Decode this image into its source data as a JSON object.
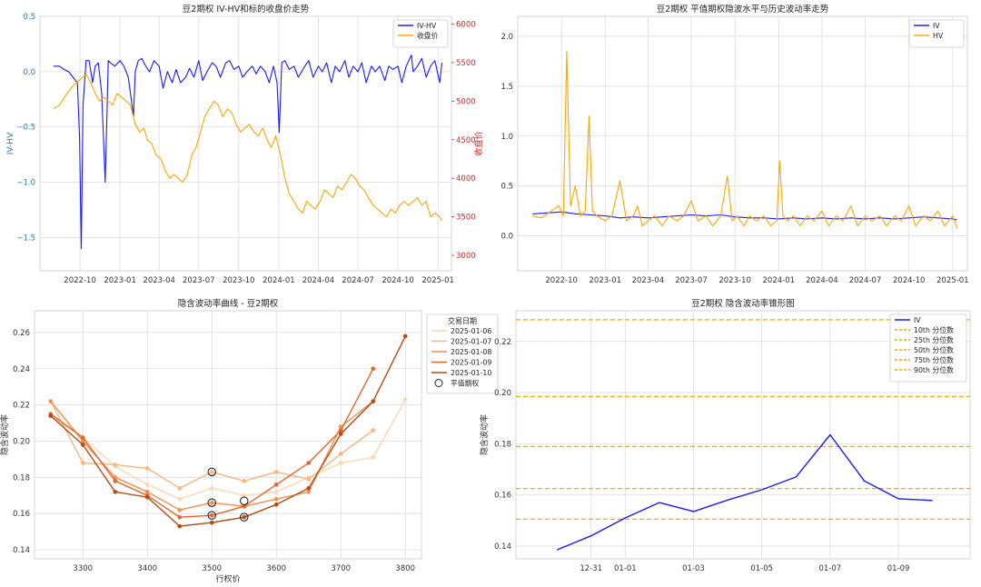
{
  "chart_data": [
    {
      "type": "line",
      "title": "豆2期权 IV-HV和标的收盘价走势",
      "ylabel": "IV-HV",
      "ylabel_right": "收盘价",
      "left_axis_color": "#1f77b4",
      "right_axis_color": "#d62728",
      "ylim": [
        -1.8,
        0.5
      ],
      "ylim_right": [
        2800,
        6100
      ],
      "yticks": [
        0.5,
        0.0,
        -0.5,
        -1.0,
        -1.5
      ],
      "yticks_right": [
        6000,
        5500,
        5000,
        4500,
        4000,
        3500,
        3000
      ],
      "xlim": [
        "2022-07-01",
        "2025-02-01"
      ],
      "xticks": [
        "2022-10",
        "2023-01",
        "2023-04",
        "2023-07",
        "2023-10",
        "2024-01",
        "2024-04",
        "2024-07",
        "2024-10",
        "2025-01"
      ],
      "grid": true,
      "legend": "top-right",
      "series": [
        {
          "name": "IV-HV",
          "color": "#1a1aff",
          "axis": "left",
          "x": [
            "2022-08-01",
            "2022-08-15",
            "2022-08-25",
            "2022-09-05",
            "2022-09-15",
            "2022-09-25",
            "2022-09-30",
            "2022-10-04",
            "2022-10-08",
            "2022-10-15",
            "2022-10-22",
            "2022-10-30",
            "2022-11-05",
            "2022-11-12",
            "2022-11-20",
            "2022-11-28",
            "2022-12-02",
            "2022-12-05",
            "2022-12-10",
            "2022-12-20",
            "2023-01-01",
            "2023-01-10",
            "2023-01-20",
            "2023-02-01",
            "2023-02-05",
            "2023-02-12",
            "2023-02-20",
            "2023-03-01",
            "2023-03-10",
            "2023-03-20",
            "2023-04-01",
            "2023-04-10",
            "2023-04-20",
            "2023-05-01",
            "2023-05-10",
            "2023-05-20",
            "2023-06-01",
            "2023-06-10",
            "2023-06-20",
            "2023-07-01",
            "2023-07-10",
            "2023-07-20",
            "2023-08-01",
            "2023-08-10",
            "2023-08-20",
            "2023-09-01",
            "2023-09-10",
            "2023-09-20",
            "2023-10-01",
            "2023-10-10",
            "2023-10-20",
            "2023-11-01",
            "2023-11-10",
            "2023-11-20",
            "2023-12-01",
            "2023-12-10",
            "2023-12-20",
            "2023-12-28",
            "2024-01-02",
            "2024-01-08",
            "2024-01-15",
            "2024-01-25",
            "2024-02-05",
            "2024-02-15",
            "2024-03-01",
            "2024-03-10",
            "2024-03-20",
            "2024-04-01",
            "2024-04-10",
            "2024-04-20",
            "2024-05-01",
            "2024-05-10",
            "2024-05-20",
            "2024-06-01",
            "2024-06-10",
            "2024-06-20",
            "2024-07-01",
            "2024-07-10",
            "2024-07-20",
            "2024-08-01",
            "2024-08-10",
            "2024-08-20",
            "2024-09-01",
            "2024-09-10",
            "2024-09-20",
            "2024-10-01",
            "2024-10-10",
            "2024-10-20",
            "2024-11-01",
            "2024-11-05",
            "2024-11-15",
            "2024-11-25",
            "2024-12-05",
            "2024-12-15",
            "2024-12-25",
            "2025-01-05",
            "2025-01-10"
          ],
          "y": [
            0.05,
            0.05,
            0.02,
            0.0,
            -0.05,
            -0.1,
            -0.6,
            -1.6,
            -0.3,
            0.1,
            0.1,
            -0.1,
            0.05,
            0.08,
            -0.2,
            -1.0,
            -0.4,
            0.1,
            0.08,
            0.05,
            0.1,
            0.05,
            -0.05,
            -0.4,
            0.0,
            0.1,
            0.12,
            0.05,
            0.0,
            0.1,
            0.05,
            -0.15,
            0.0,
            -0.1,
            0.02,
            -0.1,
            -0.05,
            0.03,
            -0.05,
            0.1,
            -0.08,
            0.0,
            0.08,
            0.05,
            -0.05,
            0.08,
            0.1,
            0.02,
            0.05,
            -0.05,
            0.0,
            0.05,
            -0.02,
            0.05,
            0.0,
            -0.1,
            0.05,
            -0.1,
            -0.55,
            0.08,
            0.1,
            0.02,
            0.05,
            -0.05,
            0.05,
            0.1,
            -0.05,
            0.05,
            0.0,
            0.08,
            -0.1,
            0.05,
            0.0,
            0.1,
            -0.05,
            0.05,
            0.0,
            0.08,
            -0.1,
            0.05,
            0.0,
            0.05,
            -0.08,
            0.05,
            0.02,
            0.05,
            -0.1,
            0.05,
            0.15,
            0.0,
            0.05,
            0.12,
            -0.05,
            0.05,
            0.1,
            -0.1,
            0.08
          ]
        },
        {
          "name": "收盘价",
          "color": "#ffa500",
          "axis": "right",
          "x": [
            "2022-08-01",
            "2022-08-15",
            "2022-09-01",
            "2022-09-15",
            "2022-09-25",
            "2022-10-05",
            "2022-10-15",
            "2022-10-25",
            "2022-11-05",
            "2022-11-15",
            "2022-11-25",
            "2022-12-05",
            "2022-12-15",
            "2022-12-25",
            "2023-01-05",
            "2023-01-15",
            "2023-01-25",
            "2023-02-05",
            "2023-02-15",
            "2023-02-25",
            "2023-03-05",
            "2023-03-15",
            "2023-03-25",
            "2023-04-05",
            "2023-04-15",
            "2023-04-25",
            "2023-05-05",
            "2023-05-15",
            "2023-05-25",
            "2023-06-05",
            "2023-06-15",
            "2023-06-25",
            "2023-07-05",
            "2023-07-15",
            "2023-07-25",
            "2023-08-05",
            "2023-08-15",
            "2023-08-25",
            "2023-09-05",
            "2023-09-15",
            "2023-09-25",
            "2023-10-05",
            "2023-10-15",
            "2023-10-25",
            "2023-11-05",
            "2023-11-15",
            "2023-11-25",
            "2023-12-05",
            "2023-12-15",
            "2023-12-25",
            "2024-01-05",
            "2024-01-15",
            "2024-01-25",
            "2024-02-05",
            "2024-02-15",
            "2024-02-25",
            "2024-03-05",
            "2024-03-15",
            "2024-03-25",
            "2024-04-05",
            "2024-04-15",
            "2024-04-25",
            "2024-05-05",
            "2024-05-15",
            "2024-05-25",
            "2024-06-05",
            "2024-06-15",
            "2024-06-25",
            "2024-07-05",
            "2024-07-15",
            "2024-07-25",
            "2024-08-05",
            "2024-08-15",
            "2024-08-25",
            "2024-09-05",
            "2024-09-15",
            "2024-09-25",
            "2024-10-05",
            "2024-10-15",
            "2024-10-25",
            "2024-11-05",
            "2024-11-15",
            "2024-11-25",
            "2024-12-05",
            "2024-12-15",
            "2024-12-25",
            "2025-01-05",
            "2025-01-10"
          ],
          "y": [
            4900,
            4950,
            5100,
            5200,
            5250,
            5300,
            5350,
            5250,
            5100,
            5000,
            5050,
            5000,
            4950,
            5100,
            5050,
            5000,
            4950,
            4700,
            4600,
            4650,
            4500,
            4450,
            4300,
            4250,
            4100,
            4000,
            4050,
            4000,
            3950,
            4050,
            4300,
            4400,
            4600,
            4800,
            4900,
            5000,
            4950,
            4800,
            4900,
            4850,
            4700,
            4600,
            4650,
            4700,
            4600,
            4550,
            4650,
            4500,
            4400,
            4550,
            4300,
            4000,
            3800,
            3700,
            3600,
            3550,
            3700,
            3650,
            3600,
            3700,
            3850,
            3800,
            3750,
            3900,
            3850,
            3950,
            4050,
            4000,
            3900,
            3850,
            3750,
            3650,
            3600,
            3550,
            3500,
            3600,
            3550,
            3650,
            3700,
            3650,
            3700,
            3750,
            3650,
            3700,
            3500,
            3550,
            3500,
            3450
          ]
        }
      ]
    },
    {
      "type": "line",
      "title": "豆2期权 平值期权隐波水平与历史波动率走势",
      "ylim": [
        -0.35,
        2.2
      ],
      "yticks": [
        0.0,
        0.5,
        1.0,
        1.5,
        2.0
      ],
      "xlim": [
        "2022-07-01",
        "2025-02-01"
      ],
      "xticks": [
        "2022-10",
        "2023-01",
        "2023-04",
        "2023-07",
        "2023-10",
        "2024-01",
        "2024-04",
        "2024-07",
        "2024-10",
        "2025-01"
      ],
      "grid": true,
      "legend": "top-right",
      "series": [
        {
          "name": "IV",
          "color": "#1a1aff",
          "x": [
            "2022-08-01",
            "2022-09-01",
            "2022-10-01",
            "2022-11-01",
            "2022-12-01",
            "2023-01-01",
            "2023-02-01",
            "2023-03-01",
            "2023-04-01",
            "2023-05-01",
            "2023-06-01",
            "2023-07-01",
            "2023-08-01",
            "2023-09-01",
            "2023-10-01",
            "2023-11-01",
            "2023-12-01",
            "2024-01-01",
            "2024-02-01",
            "2024-03-01",
            "2024-04-01",
            "2024-05-01",
            "2024-06-01",
            "2024-07-01",
            "2024-08-01",
            "2024-09-01",
            "2024-10-01",
            "2024-11-01",
            "2024-12-01",
            "2025-01-01",
            "2025-01-10"
          ],
          "y": [
            0.22,
            0.23,
            0.24,
            0.22,
            0.21,
            0.2,
            0.18,
            0.19,
            0.18,
            0.19,
            0.2,
            0.21,
            0.2,
            0.21,
            0.19,
            0.18,
            0.18,
            0.17,
            0.18,
            0.17,
            0.18,
            0.17,
            0.18,
            0.17,
            0.18,
            0.17,
            0.18,
            0.19,
            0.18,
            0.17,
            0.16
          ]
        },
        {
          "name": "HV",
          "color": "#ffa500",
          "x": [
            "2022-08-01",
            "2022-08-20",
            "2022-09-10",
            "2022-09-25",
            "2022-10-05",
            "2022-10-12",
            "2022-10-20",
            "2022-10-30",
            "2022-11-10",
            "2022-11-20",
            "2022-11-28",
            "2022-12-05",
            "2022-12-15",
            "2023-01-01",
            "2023-01-15",
            "2023-02-01",
            "2023-02-15",
            "2023-03-01",
            "2023-03-10",
            "2023-03-20",
            "2023-04-01",
            "2023-04-15",
            "2023-05-01",
            "2023-05-15",
            "2023-06-01",
            "2023-06-15",
            "2023-07-01",
            "2023-07-15",
            "2023-08-01",
            "2023-08-15",
            "2023-09-01",
            "2023-09-15",
            "2023-09-25",
            "2023-10-05",
            "2023-10-20",
            "2023-11-01",
            "2023-11-15",
            "2023-12-01",
            "2023-12-15",
            "2023-12-28",
            "2024-01-03",
            "2024-01-10",
            "2024-01-20",
            "2024-02-01",
            "2024-02-15",
            "2024-03-01",
            "2024-03-15",
            "2024-04-01",
            "2024-04-15",
            "2024-05-01",
            "2024-05-15",
            "2024-06-01",
            "2024-06-15",
            "2024-07-01",
            "2024-07-15",
            "2024-08-01",
            "2024-08-15",
            "2024-09-01",
            "2024-09-15",
            "2024-10-01",
            "2024-10-15",
            "2024-11-01",
            "2024-11-15",
            "2024-12-01",
            "2024-12-15",
            "2025-01-01",
            "2025-01-10"
          ],
          "y": [
            0.2,
            0.18,
            0.25,
            0.3,
            0.2,
            1.85,
            0.3,
            0.5,
            0.2,
            0.25,
            1.2,
            0.25,
            0.2,
            0.15,
            0.2,
            0.55,
            0.15,
            0.2,
            0.3,
            0.1,
            0.15,
            0.2,
            0.1,
            0.2,
            0.15,
            0.2,
            0.35,
            0.15,
            0.2,
            0.1,
            0.2,
            0.6,
            0.15,
            0.2,
            0.1,
            0.2,
            0.15,
            0.2,
            0.1,
            0.15,
            0.75,
            0.2,
            0.15,
            0.2,
            0.1,
            0.2,
            0.15,
            0.25,
            0.1,
            0.2,
            0.15,
            0.3,
            0.1,
            0.2,
            0.15,
            0.2,
            0.1,
            0.2,
            0.15,
            0.3,
            0.1,
            0.2,
            0.15,
            0.25,
            0.1,
            0.2,
            0.08
          ]
        }
      ]
    },
    {
      "type": "line",
      "title": "隐含波动率曲线 - 豆2期权",
      "xlabel": "行权价",
      "ylabel": "隐含波动率",
      "xlim": [
        3225,
        3825
      ],
      "ylim": [
        0.135,
        0.272
      ],
      "xticks": [
        3300,
        3400,
        3500,
        3600,
        3700,
        3800
      ],
      "yticks": [
        0.14,
        0.16,
        0.18,
        0.2,
        0.22,
        0.24,
        0.26
      ],
      "grid": true,
      "legend": "top-right",
      "legend_title": "交易日期",
      "atm_label": "平值期权",
      "series": [
        {
          "name": "2025-01-06",
          "color": "#fdd7b0",
          "x": [
            3250,
            3300,
            3350,
            3400,
            3450,
            3500,
            3550,
            3600,
            3650,
            3700,
            3750,
            3800
          ],
          "y": [
            0.214,
            0.202,
            0.186,
            0.176,
            0.168,
            0.174,
            0.17,
            0.172,
            0.18,
            0.188,
            0.191,
            0.223
          ]
        },
        {
          "name": "2025-01-07",
          "color": "#fdb47c",
          "x": [
            3250,
            3300,
            3350,
            3400,
            3450,
            3500,
            3550,
            3600,
            3650,
            3700,
            3750
          ],
          "y": [
            0.222,
            0.188,
            0.187,
            0.185,
            0.174,
            0.183,
            0.178,
            0.183,
            0.179,
            0.193,
            0.206
          ]
        },
        {
          "name": "2025-01-08",
          "color": "#f88d4d",
          "x": [
            3250,
            3300,
            3350,
            3400,
            3450,
            3500,
            3550,
            3600,
            3650,
            3700,
            3750
          ],
          "y": [
            0.222,
            0.2,
            0.18,
            0.172,
            0.162,
            0.166,
            0.164,
            0.168,
            0.172,
            0.208,
            0.222
          ]
        },
        {
          "name": "2025-01-09",
          "color": "#e8642b",
          "x": [
            3250,
            3300,
            3350,
            3400,
            3450,
            3500,
            3550,
            3600,
            3650,
            3700,
            3750
          ],
          "y": [
            0.215,
            0.202,
            0.178,
            0.17,
            0.158,
            0.159,
            0.164,
            0.176,
            0.188,
            0.206,
            0.24
          ]
        },
        {
          "name": "2025-01-10",
          "color": "#b9490f",
          "x": [
            3250,
            3300,
            3350,
            3400,
            3450,
            3500,
            3550,
            3600,
            3650,
            3700,
            3750,
            3800
          ],
          "y": [
            0.214,
            0.198,
            0.172,
            0.169,
            0.153,
            0.155,
            0.158,
            0.165,
            0.174,
            0.204,
            0.222,
            0.258
          ]
        }
      ],
      "atm_points": [
        {
          "x": 3500,
          "y": 0.183
        },
        {
          "x": 3500,
          "y": 0.166
        },
        {
          "x": 3500,
          "y": 0.159
        },
        {
          "x": 3550,
          "y": 0.167
        },
        {
          "x": 3550,
          "y": 0.158
        }
      ]
    },
    {
      "type": "line",
      "title": "豆2期权 隐含波动率锥形图",
      "ylabel": "隐含波动率",
      "xlim": [
        -1.5,
        11.8
      ],
      "ylim": [
        0.135,
        0.232
      ],
      "xtick_positions": [
        0.7,
        1.7,
        3.7,
        5.7,
        7.7,
        9.7
      ],
      "xticks": [
        "12-31",
        "01-01",
        "01-03",
        "01-05",
        "01-07",
        "01-09"
      ],
      "yticks": [
        0.14,
        0.16,
        0.18,
        0.2,
        0.22
      ],
      "grid": true,
      "legend": "top-right",
      "series": [
        {
          "name": "IV",
          "color": "#1a1aff",
          "x": [
            -0.3,
            0.7,
            1.7,
            2.7,
            3.7,
            4.7,
            5.7,
            6.7,
            7.7,
            8.7,
            9.7,
            10.7
          ],
          "y": [
            0.1385,
            0.144,
            0.151,
            0.157,
            0.1535,
            0.158,
            0.162,
            0.167,
            0.1835,
            0.1655,
            0.1585,
            0.1578
          ]
        }
      ],
      "percentiles": [
        {
          "name": "10th 分位数",
          "value": 0.1505
        },
        {
          "name": "25th 分位数",
          "value": 0.1625
        },
        {
          "name": "50th 分位数",
          "value": 0.1789
        },
        {
          "name": "75th 分位数",
          "value": 0.1985
        },
        {
          "name": "90th 分位数",
          "value": 0.2285
        }
      ],
      "percentile_color": "#ffa500"
    }
  ]
}
